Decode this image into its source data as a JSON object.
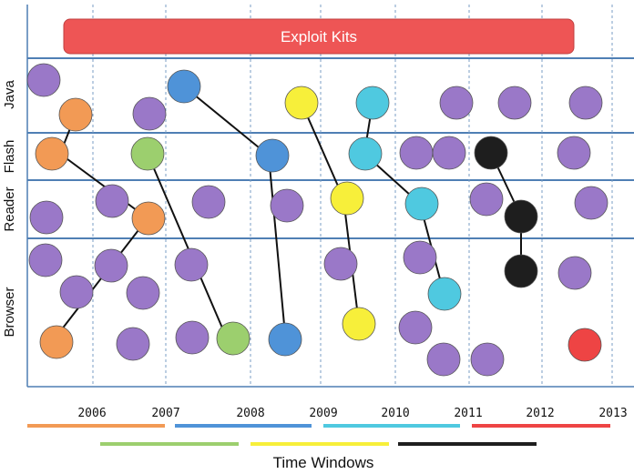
{
  "banner": {
    "label": "Exploit Kits",
    "color": "#ee5555"
  },
  "rows": [
    {
      "key": "java",
      "label": "Java"
    },
    {
      "key": "flash",
      "label": "Flash"
    },
    {
      "key": "reader",
      "label": "Reader"
    },
    {
      "key": "browser",
      "label": "Browser"
    }
  ],
  "years": [
    "2006",
    "2007",
    "2008",
    "2009",
    "2010",
    "2011",
    "2012",
    "2013"
  ],
  "axis_title": "Time Windows",
  "colors": {
    "purple": "#9a78c8",
    "orange": "#f29a55",
    "green": "#9ccf6e",
    "blue": "#4f93d8",
    "yellow": "#f7ef3a",
    "cyan": "#4fc9e0",
    "black": "#1e1e1e",
    "red": "#ee4444"
  },
  "window_bars": [
    {
      "color": "orange"
    },
    {
      "color": "blue"
    },
    {
      "color": "cyan"
    },
    {
      "color": "red"
    },
    {
      "color": "green"
    },
    {
      "color": "yellow"
    },
    {
      "color": "black"
    }
  ],
  "legend_icons": [
    "circle-marker"
  ]
}
